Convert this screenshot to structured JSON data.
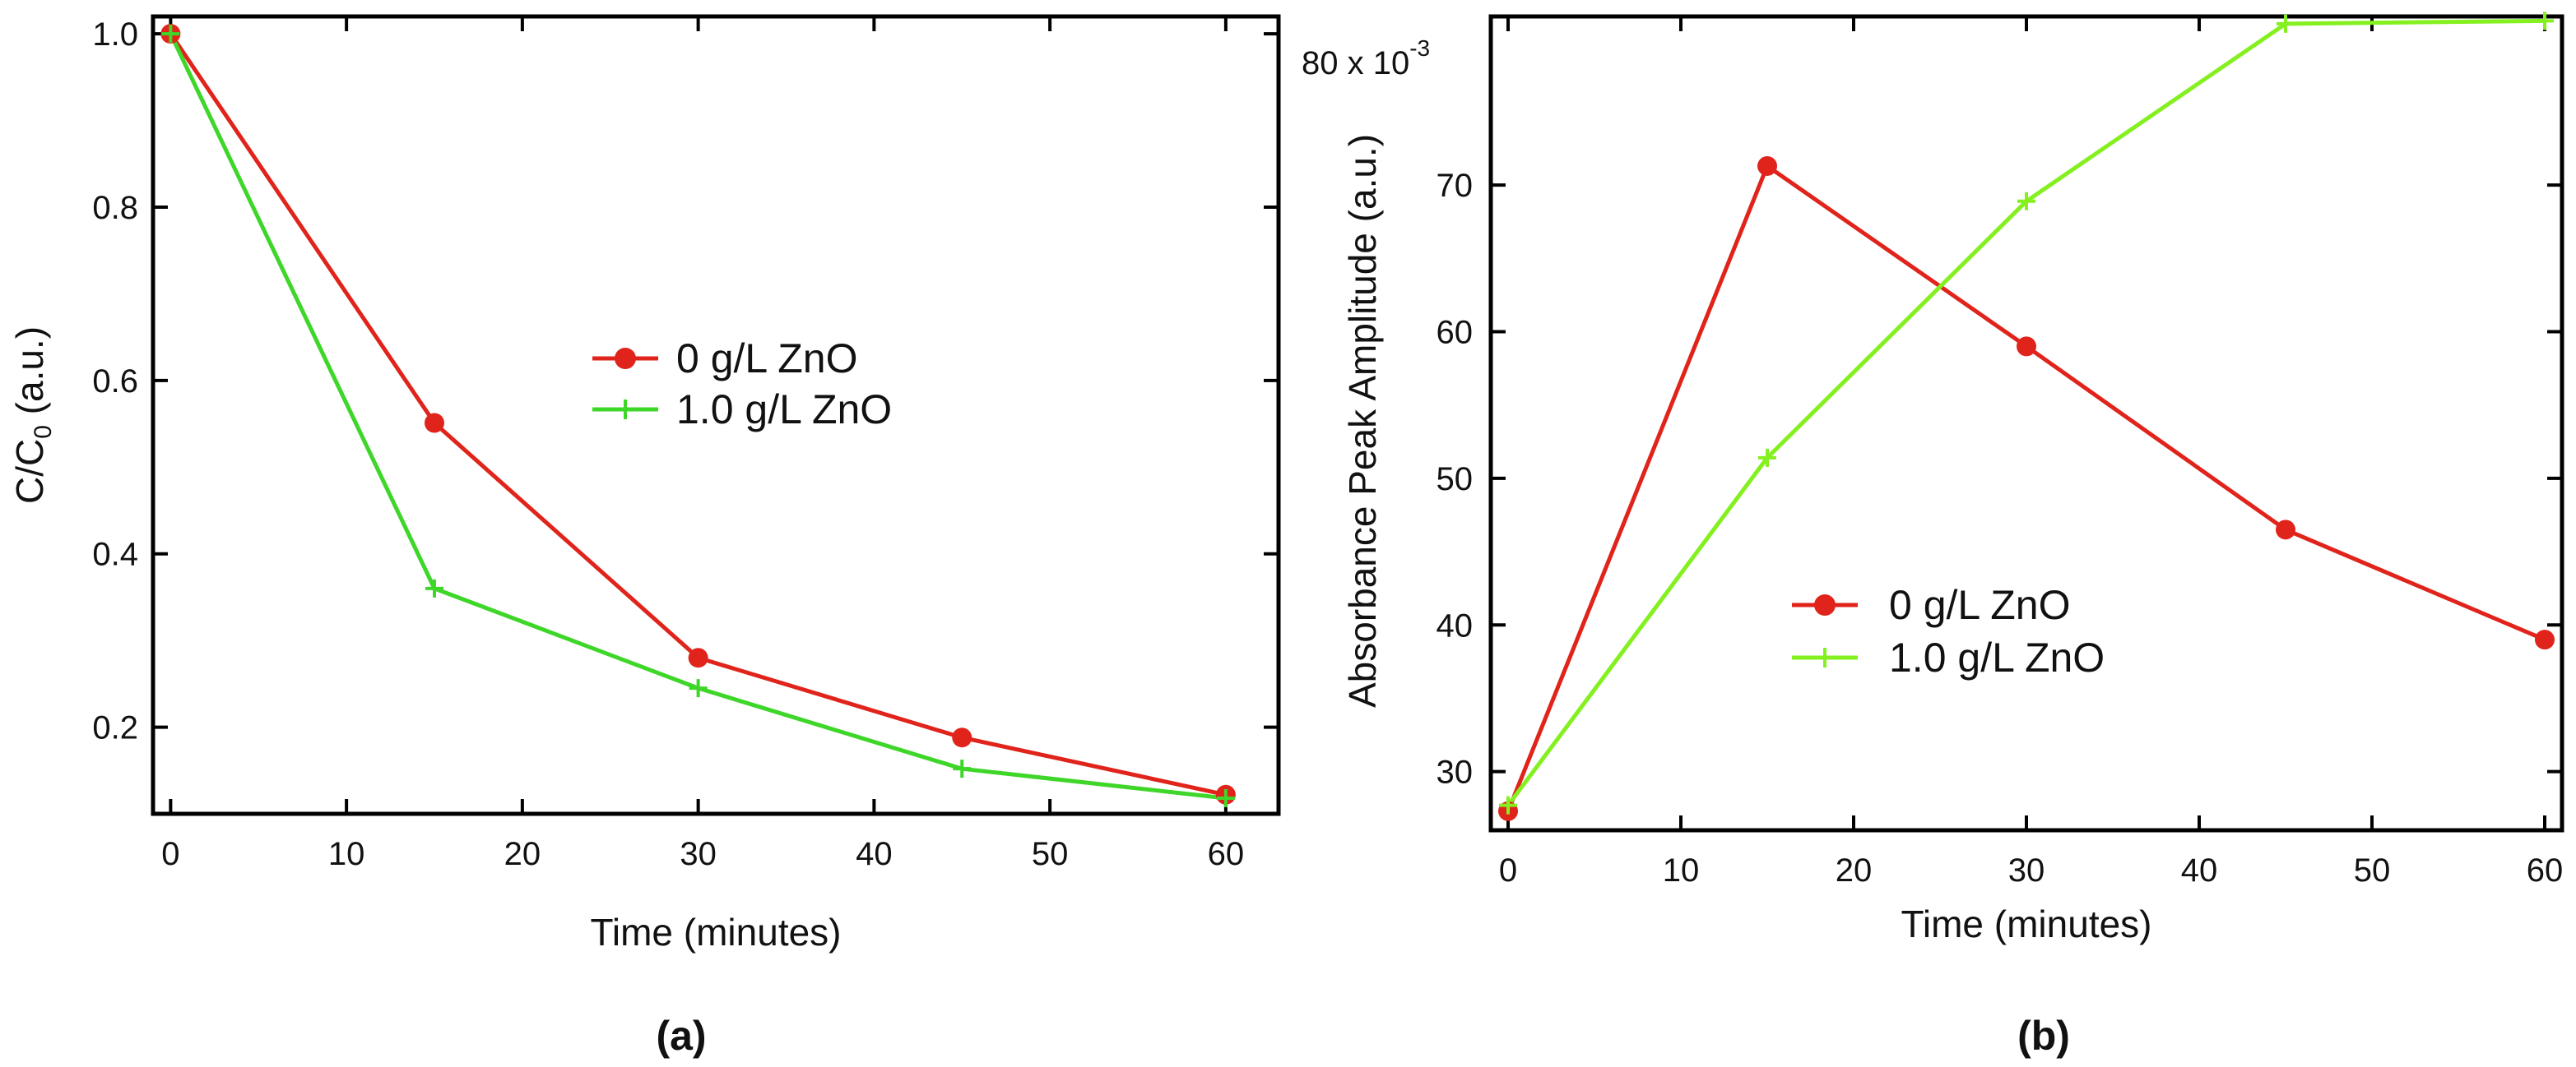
{
  "colors": {
    "red": "#e0241b",
    "green_a": "#3fd62a",
    "green_b": "#84f01f",
    "axis": "#000000"
  },
  "chart_data": [
    {
      "type": "line",
      "panel_label": "(a)",
      "xlabel": "Time (minutes)",
      "ylabel": {
        "main": "C/C",
        "sub": "0",
        "unit": " (a.u.)"
      },
      "x_ticks": [
        "0",
        "10",
        "20",
        "30",
        "40",
        "50",
        "60"
      ],
      "y_ticks": [
        "0.2",
        "0.4",
        "0.6",
        "0.8",
        "1.0"
      ],
      "xlim": [
        -1,
        63
      ],
      "ylim": [
        0.1,
        1.02
      ],
      "x": [
        0,
        15,
        30,
        45,
        60
      ],
      "series": [
        {
          "name": "0 g/L ZnO",
          "marker": "circle",
          "values": [
            1.0,
            0.551,
            0.28,
            0.188,
            0.122
          ]
        },
        {
          "name": "1.0 g/L ZnO",
          "marker": "plus",
          "values": [
            1.0,
            0.36,
            0.245,
            0.152,
            0.118
          ]
        }
      ],
      "legend_position": "center-right"
    },
    {
      "type": "line",
      "panel_label": "(b)",
      "xlabel": "Time (minutes)",
      "ylabel": "Absorbance Peak Amplitude (a.u.)",
      "scale_note": {
        "base": "80 x 10",
        "exponent": "-3"
      },
      "x_ticks": [
        "0",
        "10",
        "20",
        "30",
        "40",
        "50",
        "60"
      ],
      "y_ticks": [
        "30",
        "40",
        "50",
        "60",
        "70"
      ],
      "xlim": [
        -1,
        61
      ],
      "ylim": [
        26,
        81.5
      ],
      "x": [
        0,
        15,
        30,
        45,
        60
      ],
      "series": [
        {
          "name": "0 g/L ZnO",
          "marker": "circle",
          "values": [
            27.3,
            71.3,
            59.0,
            46.5,
            39.0
          ]
        },
        {
          "name": "1.0 g/L ZnO",
          "marker": "plus",
          "values": [
            27.7,
            51.4,
            68.9,
            81.0,
            81.2
          ]
        }
      ],
      "legend_position": "lower-center"
    }
  ]
}
